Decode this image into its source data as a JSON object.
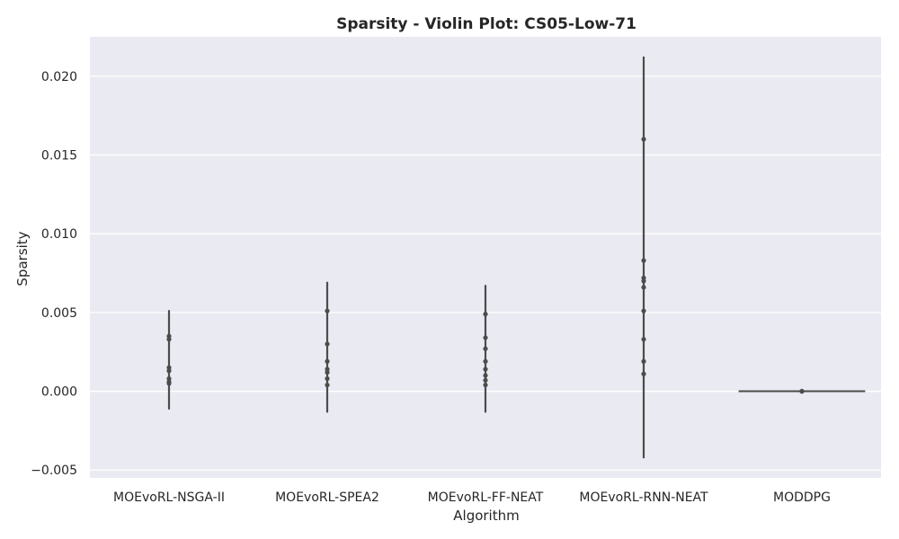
{
  "chart_data": {
    "type": "violin",
    "title": "Sparsity - Violin Plot: CS05-Low-71",
    "xlabel": "Algorithm",
    "ylabel": "Sparsity",
    "ylim": [
      -0.0055,
      0.0225
    ],
    "yticks": [
      -0.005,
      0.0,
      0.005,
      0.01,
      0.015,
      0.02
    ],
    "ytick_labels": [
      "−0.005",
      "0.000",
      "0.005",
      "0.010",
      "0.015",
      "0.020"
    ],
    "grid": true,
    "categories": [
      "MOEvoRL-NSGA-II",
      "MOEvoRL-SPEA2",
      "MOEvoRL-FF-NEAT",
      "MOEvoRL-RNN-NEAT",
      "MODDPG"
    ],
    "series": [
      {
        "category": "MOEvoRL-NSGA-II",
        "range": [
          -0.0011,
          0.0051
        ],
        "points": [
          0.0035,
          0.0033,
          0.0015,
          0.0013,
          0.0008,
          0.0006,
          0.0005
        ]
      },
      {
        "category": "MOEvoRL-SPEA2",
        "range": [
          -0.0013,
          0.0069
        ],
        "points": [
          0.0051,
          0.003,
          0.0019,
          0.0014,
          0.0012,
          0.0008,
          0.0004
        ]
      },
      {
        "category": "MOEvoRL-FF-NEAT",
        "range": [
          -0.0013,
          0.0067
        ],
        "points": [
          0.0049,
          0.0034,
          0.0027,
          0.0019,
          0.0014,
          0.001,
          0.0007,
          0.0004
        ]
      },
      {
        "category": "MOEvoRL-RNN-NEAT",
        "range": [
          -0.0042,
          0.0212
        ],
        "points": [
          0.016,
          0.0083,
          0.0072,
          0.007,
          0.0066,
          0.0051,
          0.0033,
          0.0019,
          0.0011
        ]
      },
      {
        "category": "MODDPG",
        "range": [
          -0.0001,
          0.0001
        ],
        "points": [
          0.0,
          0.0,
          0.0
        ]
      }
    ],
    "colors": {
      "background": "#eaeaf2",
      "grid": "#ffffff",
      "violin": "#4c4c4c",
      "text": "#262626"
    }
  }
}
